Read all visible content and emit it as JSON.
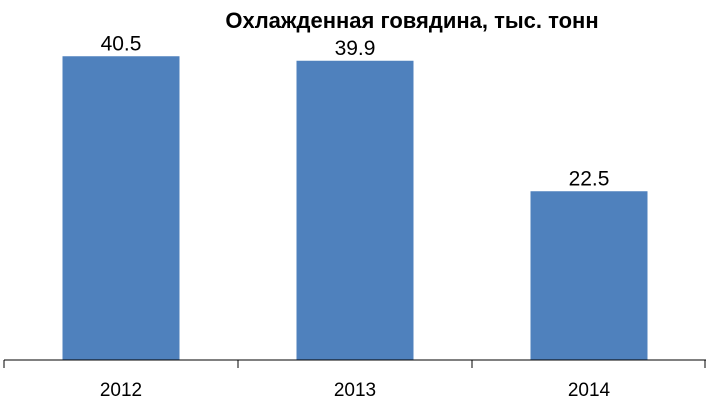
{
  "chart_data": {
    "type": "bar",
    "title": "Охлажденная говядина, тыс. тонн",
    "categories": [
      "2012",
      "2013",
      "2014"
    ],
    "values": [
      40.5,
      39.9,
      22.5
    ],
    "value_labels": [
      "40.5",
      "39.9",
      "22.5"
    ],
    "xlabel": "",
    "ylabel": "",
    "ylim": [
      0,
      42
    ],
    "grid": false,
    "legend": "none",
    "bar_color": "#4F81BD",
    "axis_color": "#000000"
  }
}
